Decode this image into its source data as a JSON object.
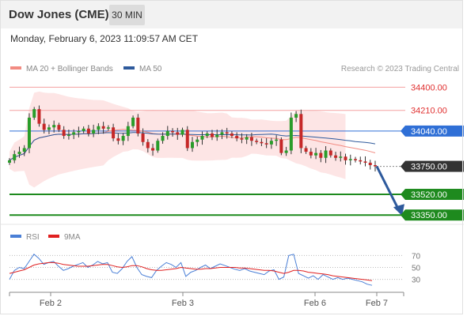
{
  "header": {
    "instrument": "Dow Jones (CME)",
    "interval": "30 MIN",
    "datetime": "Monday, February 6, 2023 11:09:57 AM CET"
  },
  "legend": {
    "items": [
      {
        "label": "MA 20 + Bollinger Bands",
        "color": "#f28b82"
      },
      {
        "label": "MA 50",
        "color": "#2e5a9c"
      }
    ],
    "research": "Research © 2023 Trading Central"
  },
  "chart_data": {
    "type": "candlestick",
    "price_range": [
      33280,
      34500
    ],
    "levels": [
      {
        "label": "34400.00",
        "value": 34400,
        "kind": "resistance",
        "color": "#e03030"
      },
      {
        "label": "34210.00",
        "value": 34210,
        "kind": "resistance",
        "color": "#e03030"
      },
      {
        "label": "34040.00",
        "value": 34040,
        "kind": "pivot",
        "color": "#2f6fd6"
      },
      {
        "label": "33750.00",
        "value": 33750,
        "kind": "last",
        "color": "#333333"
      },
      {
        "label": "33520.00",
        "value": 33520,
        "kind": "support",
        "color": "#1e8a1e"
      },
      {
        "label": "33350.00",
        "value": 33350,
        "kind": "support",
        "color": "#1e8a1e"
      }
    ],
    "close_series": [
      33800,
      33850,
      33870,
      33900,
      34150,
      34220,
      34100,
      34050,
      34070,
      34090,
      34050,
      34000,
      34010,
      34030,
      34040,
      34060,
      34020,
      34050,
      34080,
      34060,
      34070,
      33980,
      33960,
      34000,
      34080,
      34150,
      34020,
      33950,
      33900,
      33880,
      33960,
      34000,
      34040,
      34030,
      34010,
      34050,
      33900,
      33950,
      33970,
      34000,
      34020,
      33990,
      34010,
      34030,
      34020,
      34000,
      33980,
      33970,
      33990,
      33960,
      33950,
      33940,
      33930,
      33960,
      33970,
      33860,
      33880,
      34150,
      34180,
      33900,
      33870,
      33840,
      33860,
      33820,
      33880,
      33840,
      33820,
      33830,
      33800,
      33810,
      33800,
      33790,
      33780,
      33760,
      33750
    ],
    "x_ticks": [
      "Feb 2",
      "Feb 3",
      "Feb 6",
      "Feb 7"
    ],
    "forecast": {
      "from": 33750,
      "to": 33350
    }
  },
  "rsi_panel": {
    "legend": [
      {
        "label": "RSI",
        "color": "#4a7fd6"
      },
      {
        "label": "9MA",
        "color": "#e02020"
      }
    ],
    "levels": [
      "70",
      "50",
      "30"
    ],
    "range": [
      15,
      85
    ],
    "rsi": [
      30,
      45,
      50,
      48,
      60,
      72,
      65,
      55,
      58,
      60,
      52,
      45,
      48,
      52,
      55,
      58,
      50,
      54,
      60,
      56,
      58,
      42,
      40,
      48,
      60,
      68,
      50,
      38,
      35,
      33,
      45,
      52,
      58,
      55,
      50,
      58,
      35,
      42,
      45,
      50,
      54,
      48,
      52,
      56,
      53,
      50,
      47,
      45,
      48,
      44,
      42,
      40,
      38,
      44,
      46,
      30,
      34,
      70,
      72,
      40,
      36,
      32,
      36,
      30,
      38,
      34,
      30,
      33,
      30,
      32,
      30,
      28,
      26,
      22,
      20
    ],
    "ma9": [
      40,
      42,
      44,
      46,
      50,
      54,
      56,
      57,
      58,
      58,
      57,
      55,
      54,
      53,
      52,
      52,
      52,
      53,
      54,
      55,
      55,
      53,
      51,
      50,
      51,
      53,
      53,
      51,
      48,
      46,
      45,
      45,
      46,
      47,
      48,
      50,
      49,
      48,
      47,
      47,
      48,
      48,
      49,
      50,
      50,
      50,
      50,
      49,
      49,
      48,
      47,
      46,
      45,
      45,
      44,
      42,
      40,
      42,
      45,
      45,
      44,
      42,
      41,
      40,
      39,
      38,
      36,
      35,
      34,
      33,
      32,
      31,
      30,
      29,
      28
    ]
  }
}
